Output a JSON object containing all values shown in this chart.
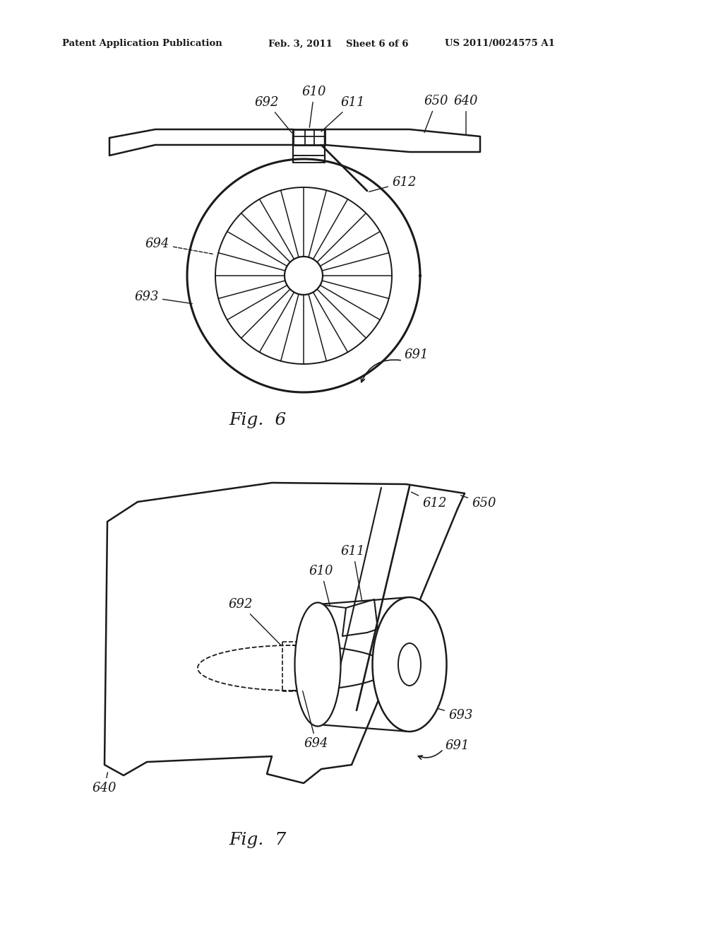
{
  "bg_color": "#ffffff",
  "line_color": "#1a1a1a",
  "header_line1": "Patent Application Publication",
  "header_line2": "Feb. 3, 2011",
  "header_line3": "Sheet 6 of 6",
  "header_line4": "US 2011/0024575 A1"
}
